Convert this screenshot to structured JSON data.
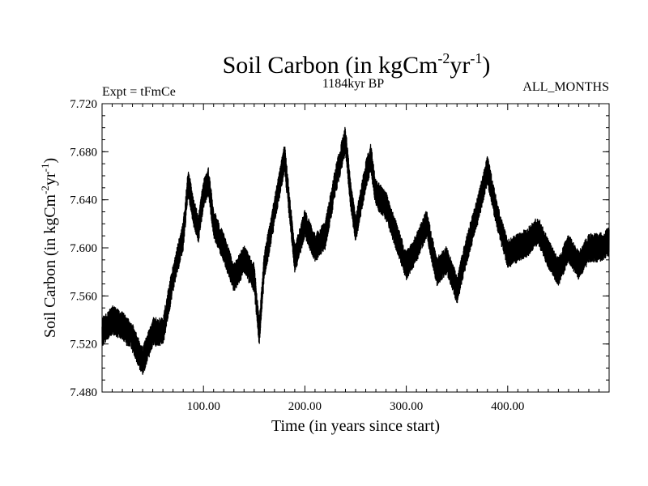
{
  "chart_data": {
    "type": "line",
    "title_main": "Soil Carbon (in kgCm",
    "title_exp1": "-2",
    "title_mid": "yr",
    "title_exp2": "-1",
    "title_end": ")",
    "subtitle": "1184kyr BP",
    "expt_label": "Expt = tFmCe",
    "months_label": "ALL_MONTHS",
    "xlabel": "Time (in years since start)",
    "ylabel_main": "Soil Carbon (in kgCm",
    "ylabel_exp1": "-2",
    "ylabel_mid": "yr",
    "ylabel_exp2": "-1",
    "ylabel_end": ")",
    "xlim": [
      0,
      500
    ],
    "ylim": [
      7.48,
      7.72
    ],
    "x_ticks": [
      100,
      200,
      300,
      400
    ],
    "x_tick_labels": [
      "100.00",
      "200.00",
      "300.00",
      "400.00"
    ],
    "y_ticks": [
      7.48,
      7.52,
      7.56,
      7.6,
      7.64,
      7.68,
      7.72
    ],
    "y_tick_labels": [
      "7.480",
      "7.520",
      "7.560",
      "7.600",
      "7.640",
      "7.680",
      "7.720"
    ],
    "series": [
      {
        "name": "Soil Carbon",
        "color": "#000000",
        "x": [
          0,
          10,
          20,
          30,
          40,
          50,
          60,
          70,
          80,
          85,
          90,
          95,
          100,
          105,
          110,
          120,
          130,
          140,
          150,
          155,
          160,
          170,
          180,
          190,
          200,
          210,
          220,
          230,
          240,
          245,
          250,
          260,
          265,
          270,
          280,
          290,
          300,
          310,
          320,
          330,
          340,
          350,
          360,
          370,
          380,
          390,
          400,
          410,
          420,
          430,
          440,
          450,
          460,
          470,
          480,
          490,
          500
        ],
        "y": [
          7.53,
          7.54,
          7.535,
          7.525,
          7.505,
          7.53,
          7.53,
          7.575,
          7.61,
          7.655,
          7.63,
          7.615,
          7.645,
          7.655,
          7.62,
          7.6,
          7.575,
          7.59,
          7.575,
          7.53,
          7.585,
          7.63,
          7.675,
          7.59,
          7.62,
          7.6,
          7.61,
          7.655,
          7.69,
          7.645,
          7.615,
          7.66,
          7.675,
          7.645,
          7.635,
          7.61,
          7.585,
          7.6,
          7.62,
          7.58,
          7.59,
          7.565,
          7.6,
          7.63,
          7.665,
          7.625,
          7.595,
          7.6,
          7.605,
          7.615,
          7.595,
          7.58,
          7.6,
          7.585,
          7.6,
          7.6,
          7.605
        ],
        "noise_amplitude": 0.012
      }
    ]
  }
}
